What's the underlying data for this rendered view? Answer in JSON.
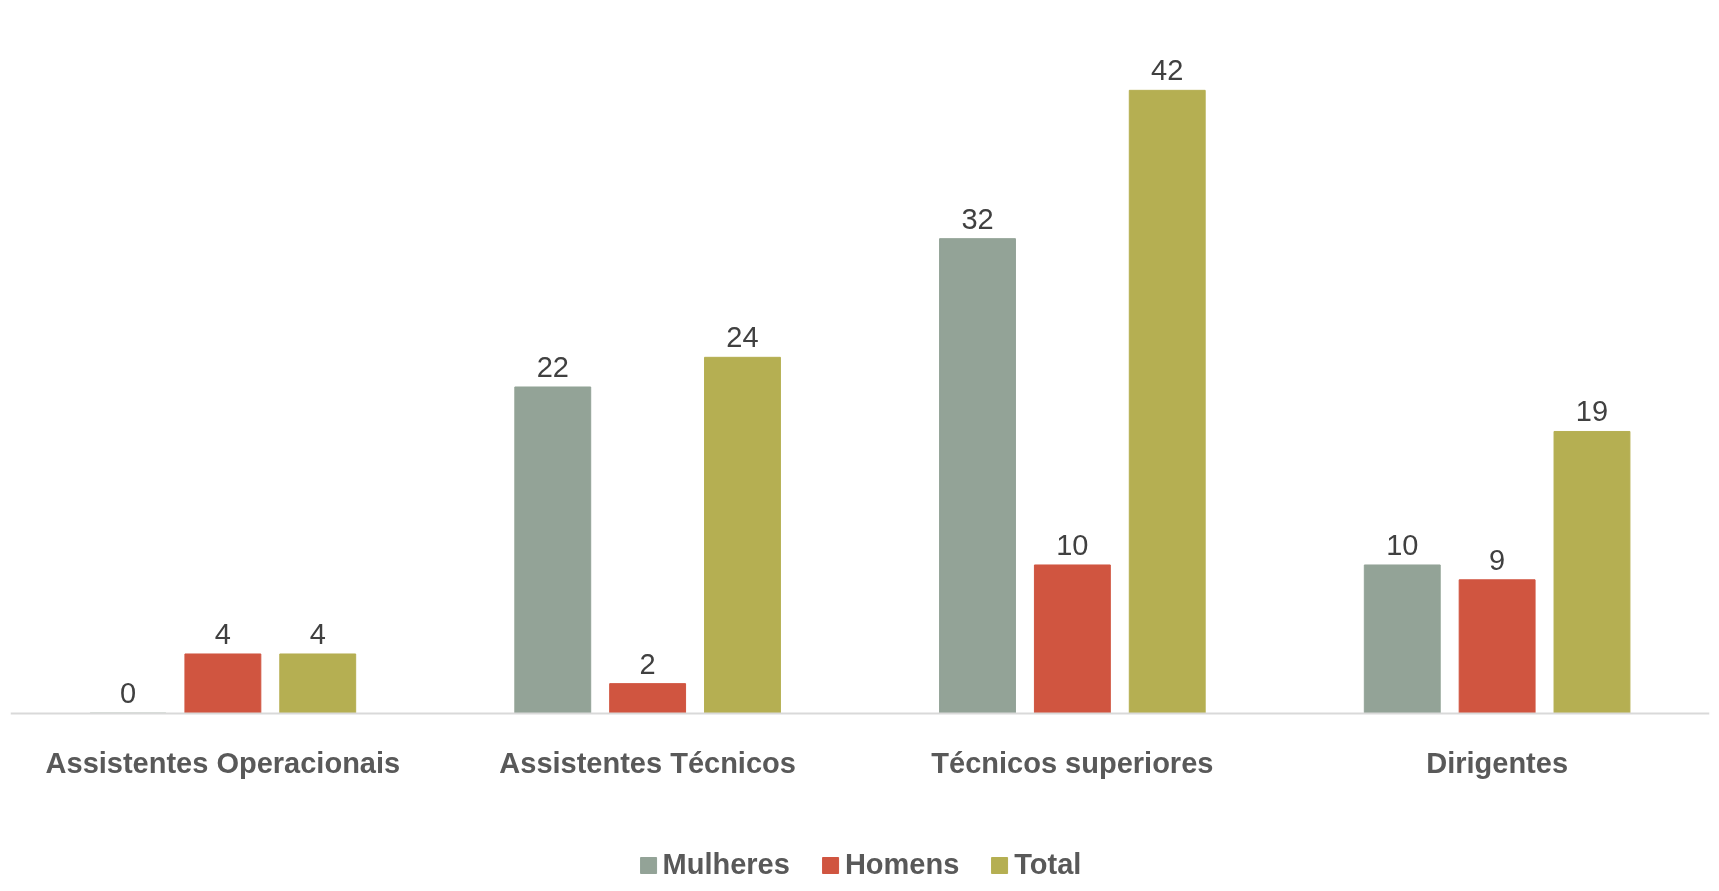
{
  "chart_data": {
    "type": "bar",
    "categories": [
      "Assistentes Operacionais",
      "Assistentes Técnicos",
      "Técnicos superiores",
      "Dirigentes"
    ],
    "series": [
      {
        "name": "Mulheres",
        "color": "#93a397",
        "values": [
          0,
          22,
          32,
          10
        ]
      },
      {
        "name": "Homens",
        "color": "#d05540",
        "values": [
          4,
          2,
          10,
          9
        ]
      },
      {
        "name": "Total",
        "color": "#b5af52",
        "values": [
          4,
          24,
          42,
          19
        ]
      }
    ],
    "data_labels": true,
    "legend": "bottom",
    "grid": false
  }
}
